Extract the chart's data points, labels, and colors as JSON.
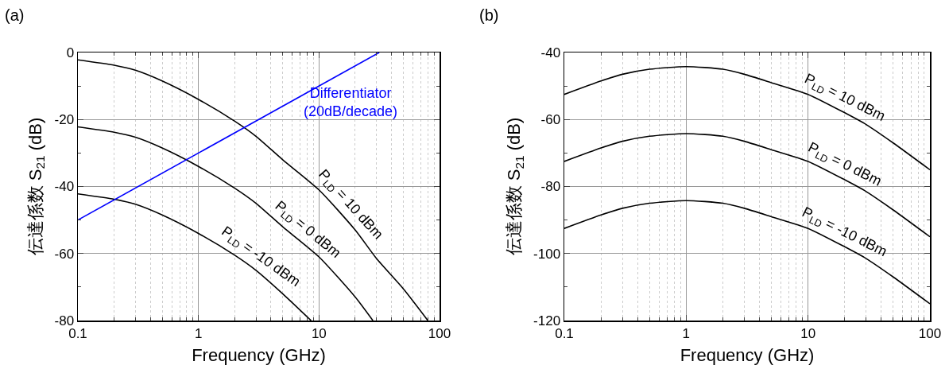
{
  "chart_data": [
    {
      "type": "line",
      "title": "(a)",
      "xlabel": "Frequency (GHz)",
      "ylabel": "伝達係数 S$_{21}$ (dB)",
      "log": "x",
      "grid": true,
      "legend": false,
      "line_style": "solid",
      "marker": "none",
      "xlim": [
        0.1,
        100
      ],
      "xticks": [
        0.1,
        1,
        10,
        100
      ],
      "ylim": [
        -80,
        0
      ],
      "yticks": [
        -80,
        -60,
        -40,
        -20,
        0
      ],
      "series": [
        {
          "name": "P$_{LD}$ = 10 dBm",
          "color": "#000000",
          "x": [
            0.1,
            0.2,
            0.3,
            0.5,
            1,
            2,
            3,
            5,
            10,
            20,
            30,
            50,
            80
          ],
          "values": [
            -2.2,
            -3.8,
            -5.3,
            -8.5,
            -14,
            -20.5,
            -25,
            -32,
            -41,
            -53,
            -61.5,
            -70.5,
            -80
          ]
        },
        {
          "name": "P$_{LD}$ = 0 dBm",
          "color": "#000000",
          "x": [
            0.1,
            0.2,
            0.3,
            0.5,
            1,
            2,
            3,
            5,
            10,
            20,
            28
          ],
          "values": [
            -22.2,
            -23.8,
            -25.3,
            -28.5,
            -34,
            -40.5,
            -45,
            -52,
            -61,
            -73,
            -80
          ]
        },
        {
          "name": "P$_{LD}$ = -10 dBm",
          "color": "#000000",
          "x": [
            0.1,
            0.2,
            0.3,
            0.5,
            1,
            2,
            3,
            5,
            8.6
          ],
          "values": [
            -42.2,
            -43.8,
            -45.3,
            -48.5,
            -54,
            -60.5,
            -65,
            -72,
            -80
          ]
        },
        {
          "name": "Differentiator\n(20dB/decade)",
          "color": "#0000ff",
          "x": [
            0.1,
            31.6
          ],
          "values": [
            -50,
            0
          ]
        }
      ]
    },
    {
      "type": "line",
      "title": "(b)",
      "xlabel": "Frequency (GHz)",
      "ylabel": "伝達係数 S$_{21}$ (dB)",
      "log": "x",
      "grid": true,
      "legend": false,
      "line_style": "solid",
      "marker": "none",
      "xlim": [
        0.1,
        100
      ],
      "xticks": [
        0.1,
        1,
        10,
        100
      ],
      "ylim": [
        -120,
        -40
      ],
      "yticks": [
        -120,
        -100,
        -80,
        -60,
        -40
      ],
      "series": [
        {
          "name": "P$_{LD}$ = 10 dBm",
          "color": "#000000",
          "x": [
            0.1,
            0.2,
            0.3,
            0.5,
            1,
            2,
            3,
            5,
            10,
            20,
            30,
            50,
            100
          ],
          "values": [
            -52.5,
            -48.5,
            -46.5,
            -45,
            -44.2,
            -45,
            -46.5,
            -49,
            -52.5,
            -58,
            -61.5,
            -67,
            -75
          ]
        },
        {
          "name": "P$_{LD}$ = 0 dBm",
          "color": "#000000",
          "x": [
            0.1,
            0.2,
            0.3,
            0.5,
            1,
            2,
            3,
            5,
            10,
            20,
            30,
            50,
            100
          ],
          "values": [
            -72.5,
            -68.5,
            -66.5,
            -65,
            -64.2,
            -65,
            -66.5,
            -69,
            -72.5,
            -78,
            -81.5,
            -87,
            -95
          ]
        },
        {
          "name": "P$_{LD}$ = -10 dBm",
          "color": "#000000",
          "x": [
            0.1,
            0.2,
            0.3,
            0.5,
            1,
            2,
            3,
            5,
            10,
            20,
            30,
            50,
            100
          ],
          "values": [
            -92.5,
            -88.5,
            -86.5,
            -85,
            -84.2,
            -85,
            -86.5,
            -89,
            -92.5,
            -98,
            -101.5,
            -107,
            -115
          ]
        }
      ]
    }
  ]
}
